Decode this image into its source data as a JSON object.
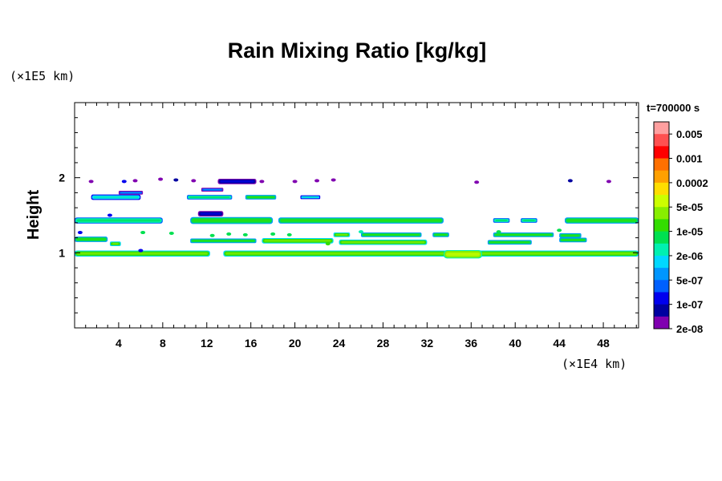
{
  "chart_data": {
    "type": "heatmap",
    "title": "Rain Mixing Ratio [kg/kg]",
    "ylabel": "Height",
    "x_unit": "(×1E4 km)",
    "y_unit": "(×1E5 km)",
    "x_ticks": [
      "4",
      "8",
      "12",
      "16",
      "20",
      "24",
      "28",
      "32",
      "36",
      "40",
      "44",
      "48"
    ],
    "x_tick_values": [
      4,
      8,
      12,
      16,
      20,
      24,
      28,
      32,
      36,
      40,
      44,
      48
    ],
    "xlim": [
      0,
      51.2
    ],
    "y_ticks": [
      "1",
      "2"
    ],
    "y_tick_values": [
      1,
      2
    ],
    "ylim": [
      0,
      3
    ],
    "time_label": "t=700000 s",
    "colorbar_labels": [
      "0.005",
      "0.001",
      "0.0002",
      "5e-05",
      "1e-05",
      "2e-06",
      "5e-07",
      "1e-07",
      "2e-08"
    ],
    "colorbar_colors": [
      "#ff9f9f",
      "#ff5050",
      "#ff0000",
      "#ff7000",
      "#ffa000",
      "#ffdd00",
      "#ccff00",
      "#88ee00",
      "#33dd00",
      "#00e050",
      "#00f0b0",
      "#00d8ff",
      "#0096ff",
      "#0060ff",
      "#0000ee",
      "#0000a0",
      "#8000b0"
    ],
    "bands": [
      {
        "x0": 0.0,
        "x1": 12.3,
        "y": 0.99,
        "h": 0.06,
        "level": 8
      },
      {
        "x0": 13.5,
        "x1": 51.2,
        "y": 0.99,
        "h": 0.06,
        "level": 8
      },
      {
        "x0": 33.5,
        "x1": 37.0,
        "y": 0.98,
        "h": 0.09,
        "level": 7
      },
      {
        "x0": 0.0,
        "x1": 3.0,
        "y": 1.18,
        "h": 0.05,
        "level": 9
      },
      {
        "x0": 3.2,
        "x1": 4.2,
        "y": 1.12,
        "h": 0.04,
        "level": 8
      },
      {
        "x0": 10.5,
        "x1": 16.5,
        "y": 1.16,
        "h": 0.04,
        "level": 9
      },
      {
        "x0": 17.0,
        "x1": 23.5,
        "y": 1.16,
        "h": 0.05,
        "level": 8
      },
      {
        "x0": 24.0,
        "x1": 32.0,
        "y": 1.14,
        "h": 0.05,
        "level": 8
      },
      {
        "x0": 37.5,
        "x1": 41.5,
        "y": 1.14,
        "h": 0.04,
        "level": 9
      },
      {
        "x0": 44.0,
        "x1": 46.5,
        "y": 1.17,
        "h": 0.04,
        "level": 9
      },
      {
        "x0": 23.5,
        "x1": 25.0,
        "y": 1.24,
        "h": 0.04,
        "level": 8
      },
      {
        "x0": 26.0,
        "x1": 31.5,
        "y": 1.24,
        "h": 0.04,
        "level": 9
      },
      {
        "x0": 32.5,
        "x1": 34.0,
        "y": 1.24,
        "h": 0.04,
        "level": 9
      },
      {
        "x0": 38.0,
        "x1": 43.5,
        "y": 1.24,
        "h": 0.04,
        "level": 9
      },
      {
        "x0": 44.0,
        "x1": 46.0,
        "y": 1.23,
        "h": 0.04,
        "level": 9
      },
      {
        "x0": 0.0,
        "x1": 8.0,
        "y": 1.43,
        "h": 0.06,
        "level": 10
      },
      {
        "x0": 10.5,
        "x1": 18.0,
        "y": 1.43,
        "h": 0.07,
        "level": 9
      },
      {
        "x0": 18.5,
        "x1": 33.5,
        "y": 1.43,
        "h": 0.06,
        "level": 9
      },
      {
        "x0": 38.0,
        "x1": 39.5,
        "y": 1.43,
        "h": 0.04,
        "level": 10
      },
      {
        "x0": 40.5,
        "x1": 42.0,
        "y": 1.43,
        "h": 0.04,
        "level": 10
      },
      {
        "x0": 44.5,
        "x1": 51.2,
        "y": 1.43,
        "h": 0.06,
        "level": 9
      },
      {
        "x0": 11.2,
        "x1": 13.5,
        "y": 1.52,
        "h": 0.05,
        "level": 15
      },
      {
        "x0": 1.5,
        "x1": 6.0,
        "y": 1.74,
        "h": 0.05,
        "level": 11
      },
      {
        "x0": 4.0,
        "x1": 6.2,
        "y": 1.8,
        "h": 0.03,
        "level": 13
      },
      {
        "x0": 10.2,
        "x1": 14.3,
        "y": 1.74,
        "h": 0.04,
        "level": 10
      },
      {
        "x0": 15.5,
        "x1": 18.3,
        "y": 1.74,
        "h": 0.04,
        "level": 9
      },
      {
        "x0": 20.5,
        "x1": 22.3,
        "y": 1.74,
        "h": 0.03,
        "level": 11
      },
      {
        "x0": 13.0,
        "x1": 16.5,
        "y": 1.95,
        "h": 0.05,
        "level": 15
      },
      {
        "x0": 11.5,
        "x1": 13.5,
        "y": 1.84,
        "h": 0.03,
        "level": 13
      }
    ],
    "dots": [
      {
        "x": 1.5,
        "y": 1.95,
        "level": 16
      },
      {
        "x": 4.5,
        "y": 1.95,
        "level": 14
      },
      {
        "x": 5.5,
        "y": 1.96,
        "level": 16
      },
      {
        "x": 7.8,
        "y": 1.98,
        "level": 16
      },
      {
        "x": 9.2,
        "y": 1.97,
        "level": 15
      },
      {
        "x": 10.8,
        "y": 1.96,
        "level": 16
      },
      {
        "x": 17.0,
        "x2": 0,
        "y": 1.95,
        "level": 16
      },
      {
        "x": 20.0,
        "y": 1.95,
        "level": 16
      },
      {
        "x": 22.0,
        "y": 1.96,
        "level": 16
      },
      {
        "x": 23.5,
        "y": 1.97,
        "level": 16
      },
      {
        "x": 36.5,
        "y": 1.94,
        "level": 16
      },
      {
        "x": 45.0,
        "y": 1.96,
        "level": 15
      },
      {
        "x": 48.5,
        "y": 1.95,
        "level": 16
      },
      {
        "x": 0.5,
        "y": 1.27,
        "level": 14
      },
      {
        "x": 6.0,
        "y": 1.03,
        "level": 14
      },
      {
        "x": 3.2,
        "y": 1.5,
        "level": 14
      },
      {
        "x": 12.5,
        "y": 1.23,
        "level": 9
      },
      {
        "x": 14.0,
        "y": 1.25,
        "level": 9
      },
      {
        "x": 15.5,
        "y": 1.24,
        "level": 9
      },
      {
        "x": 18.0,
        "y": 1.25,
        "level": 9
      },
      {
        "x": 19.5,
        "y": 1.24,
        "level": 9
      },
      {
        "x": 23.0,
        "y": 1.12,
        "level": 8
      },
      {
        "x": 26.0,
        "y": 1.28,
        "level": 10
      },
      {
        "x": 44.0,
        "y": 1.3,
        "level": 9
      },
      {
        "x": 8.8,
        "y": 1.26,
        "level": 9
      },
      {
        "x": 6.2,
        "y": 1.27,
        "level": 9
      },
      {
        "x": 38.5,
        "y": 1.28,
        "level": 9
      }
    ]
  }
}
